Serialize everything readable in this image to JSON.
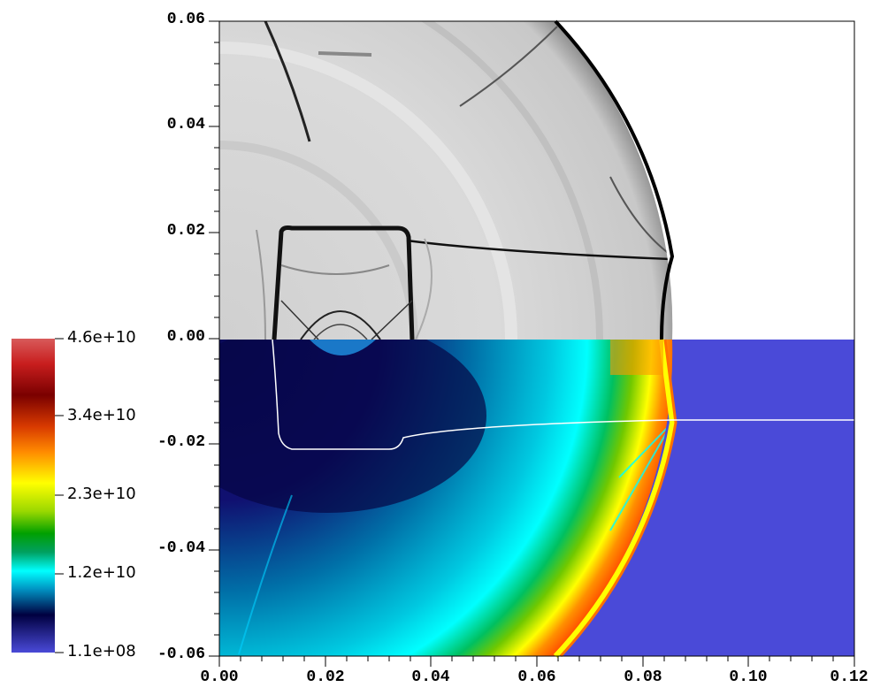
{
  "figure": {
    "x_ticks": [
      "0.00",
      "0.02",
      "0.04",
      "0.06",
      "0.08",
      "0.10",
      "0.12"
    ],
    "y_ticks": [
      "0.06",
      "0.04",
      "0.02",
      "0.00",
      "-0.02",
      "-0.04",
      "-0.06"
    ],
    "x_range": [
      0.0,
      0.12
    ],
    "y_range": [
      -0.06,
      0.06
    ],
    "top_half": "grayscale schlieren image",
    "bottom_half": "pseudocolor field",
    "background_color": "#4a4ad8"
  },
  "colorbar": {
    "labels": [
      "4.6e+10",
      "3.4e+10",
      "2.3e+10",
      "1.2e+10",
      "1.1e+08"
    ],
    "colors_top_to_bottom": [
      "#d85a5a",
      "#c81e1e",
      "#7a0000",
      "#d83a00",
      "#ff8a00",
      "#ffff00",
      "#9ad800",
      "#00a000",
      "#00a060",
      "#00ffff",
      "#0090c0",
      "#000040",
      "#4a4ad8"
    ]
  }
}
